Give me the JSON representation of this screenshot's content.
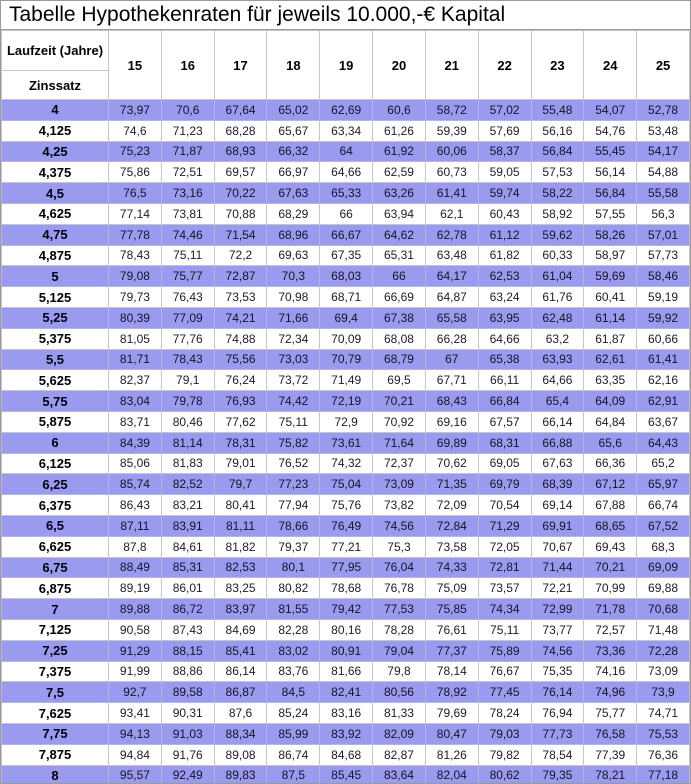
{
  "title": "Tabelle Hypothekenraten für jeweils 10.000,-€ Kapital",
  "colors": {
    "row_highlight": "#9a9aee",
    "grid_line": "#c6c6c6",
    "outer_border": "#9a9a9a",
    "text": "#000000"
  },
  "chart_data": {
    "type": "table",
    "title": "Tabelle Hypothekenraten für jeweils 10.000,-€ Kapital",
    "col_group_label": "Laufzeit (Jahre)",
    "row_group_label": "Zinssatz",
    "columns": [
      "15",
      "16",
      "17",
      "18",
      "19",
      "20",
      "21",
      "22",
      "23",
      "24",
      "25"
    ],
    "rows": [
      {
        "rate": "4",
        "values": [
          "73,97",
          "70,6",
          "67,64",
          "65,02",
          "62,69",
          "60,6",
          "58,72",
          "57,02",
          "55,48",
          "54,07",
          "52,78"
        ]
      },
      {
        "rate": "4,125",
        "values": [
          "74,6",
          "71,23",
          "68,28",
          "65,67",
          "63,34",
          "61,26",
          "59,39",
          "57,69",
          "56,16",
          "54,76",
          "53,48"
        ]
      },
      {
        "rate": "4,25",
        "values": [
          "75,23",
          "71,87",
          "68,93",
          "66,32",
          "64",
          "61,92",
          "60,06",
          "58,37",
          "56,84",
          "55,45",
          "54,17"
        ]
      },
      {
        "rate": "4,375",
        "values": [
          "75,86",
          "72,51",
          "69,57",
          "66,97",
          "64,66",
          "62,59",
          "60,73",
          "59,05",
          "57,53",
          "56,14",
          "54,88"
        ]
      },
      {
        "rate": "4,5",
        "values": [
          "76,5",
          "73,16",
          "70,22",
          "67,63",
          "65,33",
          "63,26",
          "61,41",
          "59,74",
          "58,22",
          "56,84",
          "55,58"
        ]
      },
      {
        "rate": "4,625",
        "values": [
          "77,14",
          "73,81",
          "70,88",
          "68,29",
          "66",
          "63,94",
          "62,1",
          "60,43",
          "58,92",
          "57,55",
          "56,3"
        ]
      },
      {
        "rate": "4,75",
        "values": [
          "77,78",
          "74,46",
          "71,54",
          "68,96",
          "66,67",
          "64,62",
          "62,78",
          "61,12",
          "59,62",
          "58,26",
          "57,01"
        ]
      },
      {
        "rate": "4,875",
        "values": [
          "78,43",
          "75,11",
          "72,2",
          "69,63",
          "67,35",
          "65,31",
          "63,48",
          "61,82",
          "60,33",
          "58,97",
          "57,73"
        ]
      },
      {
        "rate": "5",
        "values": [
          "79,08",
          "75,77",
          "72,87",
          "70,3",
          "68,03",
          "66",
          "64,17",
          "62,53",
          "61,04",
          "59,69",
          "58,46"
        ]
      },
      {
        "rate": "5,125",
        "values": [
          "79,73",
          "76,43",
          "73,53",
          "70,98",
          "68,71",
          "66,69",
          "64,87",
          "63,24",
          "61,76",
          "60,41",
          "59,19"
        ]
      },
      {
        "rate": "5,25",
        "values": [
          "80,39",
          "77,09",
          "74,21",
          "71,66",
          "69,4",
          "67,38",
          "65,58",
          "63,95",
          "62,48",
          "61,14",
          "59,92"
        ]
      },
      {
        "rate": "5,375",
        "values": [
          "81,05",
          "77,76",
          "74,88",
          "72,34",
          "70,09",
          "68,08",
          "66,28",
          "64,66",
          "63,2",
          "61,87",
          "60,66"
        ]
      },
      {
        "rate": "5,5",
        "values": [
          "81,71",
          "78,43",
          "75,56",
          "73,03",
          "70,79",
          "68,79",
          "67",
          "65,38",
          "63,93",
          "62,61",
          "61,41"
        ]
      },
      {
        "rate": "5,625",
        "values": [
          "82,37",
          "79,1",
          "76,24",
          "73,72",
          "71,49",
          "69,5",
          "67,71",
          "66,11",
          "64,66",
          "63,35",
          "62,16"
        ]
      },
      {
        "rate": "5,75",
        "values": [
          "83,04",
          "79,78",
          "76,93",
          "74,42",
          "72,19",
          "70,21",
          "68,43",
          "66,84",
          "65,4",
          "64,09",
          "62,91"
        ]
      },
      {
        "rate": "5,875",
        "values": [
          "83,71",
          "80,46",
          "77,62",
          "75,11",
          "72,9",
          "70,92",
          "69,16",
          "67,57",
          "66,14",
          "64,84",
          "63,67"
        ]
      },
      {
        "rate": "6",
        "values": [
          "84,39",
          "81,14",
          "78,31",
          "75,82",
          "73,61",
          "71,64",
          "69,89",
          "68,31",
          "66,88",
          "65,6",
          "64,43"
        ]
      },
      {
        "rate": "6,125",
        "values": [
          "85,06",
          "81,83",
          "79,01",
          "76,52",
          "74,32",
          "72,37",
          "70,62",
          "69,05",
          "67,63",
          "66,36",
          "65,2"
        ]
      },
      {
        "rate": "6,25",
        "values": [
          "85,74",
          "82,52",
          "79,7",
          "77,23",
          "75,04",
          "73,09",
          "71,35",
          "69,79",
          "68,39",
          "67,12",
          "65,97"
        ]
      },
      {
        "rate": "6,375",
        "values": [
          "86,43",
          "83,21",
          "80,41",
          "77,94",
          "75,76",
          "73,82",
          "72,09",
          "70,54",
          "69,14",
          "67,88",
          "66,74"
        ]
      },
      {
        "rate": "6,5",
        "values": [
          "87,11",
          "83,91",
          "81,11",
          "78,66",
          "76,49",
          "74,56",
          "72,84",
          "71,29",
          "69,91",
          "68,65",
          "67,52"
        ]
      },
      {
        "rate": "6,625",
        "values": [
          "87,8",
          "84,61",
          "81,82",
          "79,37",
          "77,21",
          "75,3",
          "73,58",
          "72,05",
          "70,67",
          "69,43",
          "68,3"
        ]
      },
      {
        "rate": "6,75",
        "values": [
          "88,49",
          "85,31",
          "82,53",
          "80,1",
          "77,95",
          "76,04",
          "74,33",
          "72,81",
          "71,44",
          "70,21",
          "69,09"
        ]
      },
      {
        "rate": "6,875",
        "values": [
          "89,19",
          "86,01",
          "83,25",
          "80,82",
          "78,68",
          "76,78",
          "75,09",
          "73,57",
          "72,21",
          "70,99",
          "69,88"
        ]
      },
      {
        "rate": "7",
        "values": [
          "89,88",
          "86,72",
          "83,97",
          "81,55",
          "79,42",
          "77,53",
          "75,85",
          "74,34",
          "72,99",
          "71,78",
          "70,68"
        ]
      },
      {
        "rate": "7,125",
        "values": [
          "90,58",
          "87,43",
          "84,69",
          "82,28",
          "80,16",
          "78,28",
          "76,61",
          "75,11",
          "73,77",
          "72,57",
          "71,48"
        ]
      },
      {
        "rate": "7,25",
        "values": [
          "91,29",
          "88,15",
          "85,41",
          "83,02",
          "80,91",
          "79,04",
          "77,37",
          "75,89",
          "74,56",
          "73,36",
          "72,28"
        ]
      },
      {
        "rate": "7,375",
        "values": [
          "91,99",
          "88,86",
          "86,14",
          "83,76",
          "81,66",
          "79,8",
          "78,14",
          "76,67",
          "75,35",
          "74,16",
          "73,09"
        ]
      },
      {
        "rate": "7,5",
        "values": [
          "92,7",
          "89,58",
          "86,87",
          "84,5",
          "82,41",
          "80,56",
          "78,92",
          "77,45",
          "76,14",
          "74,96",
          "73,9"
        ]
      },
      {
        "rate": "7,625",
        "values": [
          "93,41",
          "90,31",
          "87,6",
          "85,24",
          "83,16",
          "81,33",
          "79,69",
          "78,24",
          "76,94",
          "75,77",
          "74,71"
        ]
      },
      {
        "rate": "7,75",
        "values": [
          "94,13",
          "91,03",
          "88,34",
          "85,99",
          "83,92",
          "82,09",
          "80,47",
          "79,03",
          "77,73",
          "76,58",
          "75,53"
        ]
      },
      {
        "rate": "7,875",
        "values": [
          "94,84",
          "91,76",
          "89,08",
          "86,74",
          "84,68",
          "82,87",
          "81,26",
          "79,82",
          "78,54",
          "77,39",
          "76,36"
        ]
      },
      {
        "rate": "8",
        "values": [
          "95,57",
          "92,49",
          "89,83",
          "87,5",
          "85,45",
          "83,64",
          "82,04",
          "80,62",
          "79,35",
          "78,21",
          "77,18"
        ]
      }
    ]
  }
}
